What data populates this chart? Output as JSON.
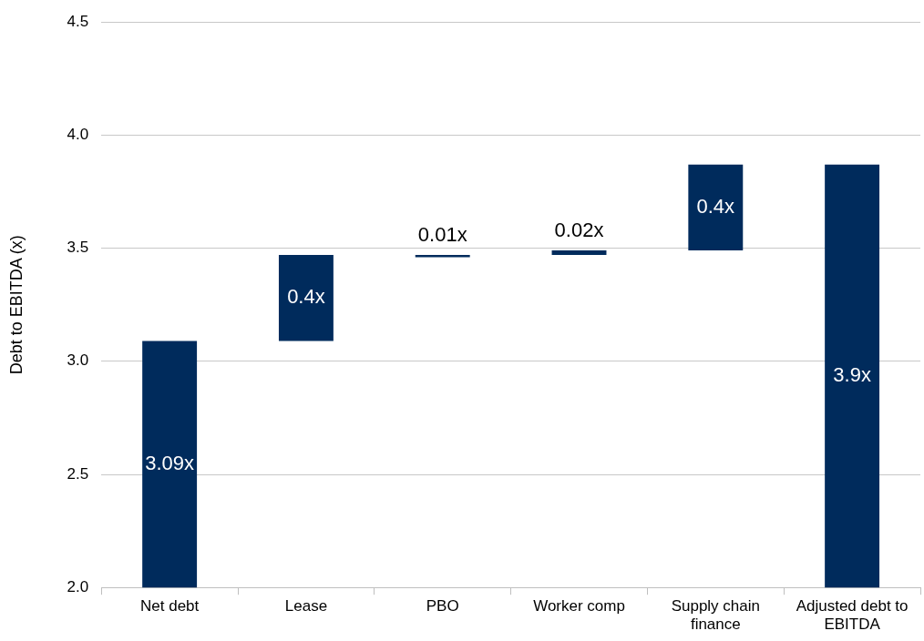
{
  "chart_data": {
    "type": "bar",
    "ylabel": "Debt to EBITDA (x)",
    "categories": [
      "Net debt",
      "Lease",
      "PBO",
      "Worker comp",
      "Supply chain finance",
      "Adjusted debt to EBITDA"
    ],
    "values": [
      3.09,
      0.38,
      0.01,
      0.02,
      0.38,
      3.87
    ],
    "base": [
      null,
      3.09,
      3.46,
      3.47,
      3.49,
      null
    ],
    "value_labels": [
      "3.09x",
      "0.4x",
      "0.01x",
      "0.02x",
      "0.4x",
      "3.9x"
    ],
    "color": "#002b5c",
    "ylim": [
      2,
      4.5
    ],
    "yticks": [
      {
        "value": 2,
        "label": "2.0"
      },
      {
        "value": 2.5,
        "label": "2.5"
      },
      {
        "value": 3,
        "label": "3.0"
      },
      {
        "value": 3.5,
        "label": "3.5"
      },
      {
        "value": 4,
        "label": "4.0"
      },
      {
        "value": 4.5,
        "label": "4.5"
      }
    ],
    "grid": "y",
    "legend": false
  }
}
